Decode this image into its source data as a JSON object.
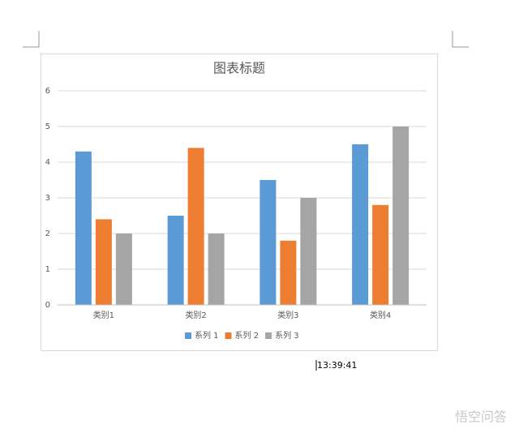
{
  "chart_data": {
    "type": "bar",
    "title": "图表标题",
    "categories": [
      "类别1",
      "类别2",
      "类别3",
      "类别4"
    ],
    "series": [
      {
        "name": "系列 1",
        "color": "#5b9bd5",
        "values": [
          4.3,
          2.5,
          3.5,
          4.5
        ]
      },
      {
        "name": "系列 2",
        "color": "#ed7d31",
        "values": [
          2.4,
          4.4,
          1.8,
          2.8
        ]
      },
      {
        "name": "系列 3",
        "color": "#a5a5a5",
        "values": [
          2,
          2,
          3,
          5
        ]
      }
    ],
    "ylim": [
      0,
      6
    ],
    "yticks": [
      0,
      1,
      2,
      3,
      4,
      5,
      6
    ],
    "grid": true,
    "legend": "bottom"
  },
  "timestamp": "13:39:41",
  "watermark": "悟空问答"
}
